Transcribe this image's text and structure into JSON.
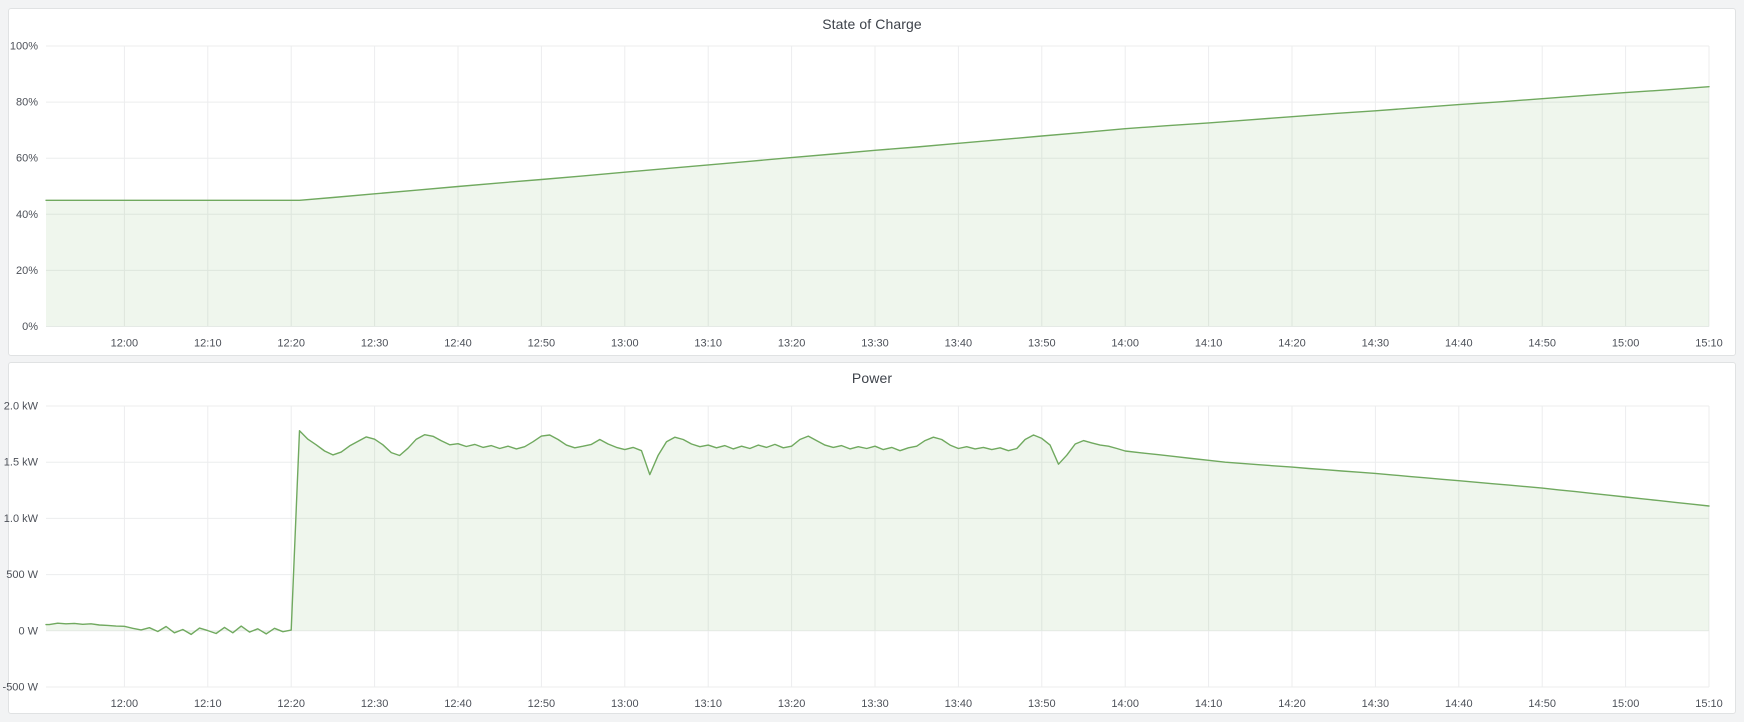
{
  "page": {
    "background": "#f2f3f4",
    "panel_background": "#ffffff",
    "panel_border": "#e0e2e3"
  },
  "panels": [
    {
      "title": "State of Charge"
    },
    {
      "title": "Power"
    }
  ],
  "colors": {
    "series_green": "#70a95f",
    "series_fill": "rgba(112,169,95,0.11)",
    "grid": "#ecedee",
    "tick_text": "#4d5159",
    "title_text": "#3d424a"
  },
  "chart_data": [
    {
      "type": "area",
      "title": "State of Charge",
      "unit": "%",
      "xlim": [
        -9.4,
        190
      ],
      "ylim": [
        0,
        100
      ],
      "grid": true,
      "legend": "hidden",
      "fill_baseline": 0,
      "x_tick_t": [
        0,
        10,
        20,
        30,
        40,
        50,
        60,
        70,
        80,
        90,
        100,
        110,
        120,
        130,
        140,
        150,
        160,
        170,
        180,
        190
      ],
      "x_tick_labels": [
        "12:00",
        "12:10",
        "12:20",
        "12:30",
        "12:40",
        "12:50",
        "13:00",
        "13:10",
        "13:20",
        "13:30",
        "13:40",
        "13:50",
        "14:00",
        "14:10",
        "14:20",
        "14:30",
        "14:40",
        "14:50",
        "15:00",
        "15:10"
      ],
      "y_tick_v": [
        0,
        20,
        40,
        60,
        80,
        100
      ],
      "y_tick_labels": [
        "0%",
        "20%",
        "40%",
        "60%",
        "80%",
        "100%"
      ],
      "series": [
        {
          "name": "State of Charge",
          "points": [
            [
              -9.4,
              45
            ],
            [
              0,
              45
            ],
            [
              5,
              45
            ],
            [
              10,
              45
            ],
            [
              15,
              45
            ],
            [
              20,
              45
            ],
            [
              21,
              45
            ],
            [
              25,
              46
            ],
            [
              30,
              47.3
            ],
            [
              35,
              48.6
            ],
            [
              40,
              49.9
            ],
            [
              45,
              51.2
            ],
            [
              50,
              52.4
            ],
            [
              55,
              53.7
            ],
            [
              60,
              55
            ],
            [
              65,
              56.3
            ],
            [
              70,
              57.6
            ],
            [
              75,
              58.9
            ],
            [
              80,
              60.2
            ],
            [
              85,
              61.5
            ],
            [
              90,
              62.8
            ],
            [
              95,
              64
            ],
            [
              100,
              65.3
            ],
            [
              105,
              66.6
            ],
            [
              110,
              67.9
            ],
            [
              115,
              69.2
            ],
            [
              120,
              70.5
            ],
            [
              125,
              71.6
            ],
            [
              130,
              72.6
            ],
            [
              135,
              73.7
            ],
            [
              140,
              74.8
            ],
            [
              145,
              75.9
            ],
            [
              150,
              76.9
            ],
            [
              155,
              78
            ],
            [
              160,
              79.1
            ],
            [
              165,
              80.1
            ],
            [
              170,
              81.2
            ],
            [
              175,
              82.3
            ],
            [
              180,
              83.4
            ],
            [
              185,
              84.4
            ],
            [
              190,
              85.5
            ]
          ]
        }
      ]
    },
    {
      "type": "area",
      "title": "Power",
      "unit": "W",
      "xlim": [
        -9.4,
        190
      ],
      "ylim": [
        -500,
        2000
      ],
      "grid": true,
      "legend": "hidden",
      "fill_baseline": 0,
      "x_tick_t": [
        0,
        10,
        20,
        30,
        40,
        50,
        60,
        70,
        80,
        90,
        100,
        110,
        120,
        130,
        140,
        150,
        160,
        170,
        180,
        190
      ],
      "x_tick_labels": [
        "12:00",
        "12:10",
        "12:20",
        "12:30",
        "12:40",
        "12:50",
        "13:00",
        "13:10",
        "13:20",
        "13:30",
        "13:40",
        "13:50",
        "14:00",
        "14:10",
        "14:20",
        "14:30",
        "14:40",
        "14:50",
        "15:00",
        "15:10"
      ],
      "y_tick_v": [
        -500,
        0,
        500,
        1000,
        1500,
        2000
      ],
      "y_tick_labels": [
        "-500 W",
        "0 W",
        "500 W",
        "1.0 kW",
        "1.5 kW",
        "2.0 kW"
      ],
      "series": [
        {
          "name": "Power",
          "points": [
            [
              -9.4,
              55
            ],
            [
              -9,
              55
            ],
            [
              -8,
              68
            ],
            [
              -7,
              62
            ],
            [
              -6,
              66
            ],
            [
              -5,
              58
            ],
            [
              -4,
              62
            ],
            [
              -3,
              52
            ],
            [
              -2,
              48
            ],
            [
              -1,
              42
            ],
            [
              0,
              40
            ],
            [
              1,
              22
            ],
            [
              2,
              8
            ],
            [
              3,
              28
            ],
            [
              4,
              -6
            ],
            [
              5,
              38
            ],
            [
              6,
              -18
            ],
            [
              7,
              12
            ],
            [
              8,
              -32
            ],
            [
              9,
              24
            ],
            [
              10,
              2
            ],
            [
              11,
              -24
            ],
            [
              12,
              30
            ],
            [
              13,
              -18
            ],
            [
              14,
              42
            ],
            [
              15,
              -12
            ],
            [
              16,
              18
            ],
            [
              17,
              -28
            ],
            [
              18,
              22
            ],
            [
              19,
              -8
            ],
            [
              20,
              6
            ],
            [
              21,
              1780
            ],
            [
              22,
              1705
            ],
            [
              23,
              1655
            ],
            [
              24,
              1600
            ],
            [
              25,
              1565
            ],
            [
              26,
              1590
            ],
            [
              27,
              1645
            ],
            [
              28,
              1685
            ],
            [
              29,
              1725
            ],
            [
              30,
              1705
            ],
            [
              31,
              1655
            ],
            [
              32,
              1585
            ],
            [
              33,
              1560
            ],
            [
              34,
              1625
            ],
            [
              35,
              1705
            ],
            [
              36,
              1745
            ],
            [
              37,
              1730
            ],
            [
              38,
              1690
            ],
            [
              39,
              1655
            ],
            [
              40,
              1665
            ],
            [
              41,
              1640
            ],
            [
              42,
              1658
            ],
            [
              43,
              1632
            ],
            [
              44,
              1648
            ],
            [
              45,
              1622
            ],
            [
              46,
              1642
            ],
            [
              47,
              1618
            ],
            [
              48,
              1638
            ],
            [
              49,
              1682
            ],
            [
              50,
              1732
            ],
            [
              51,
              1742
            ],
            [
              52,
              1702
            ],
            [
              53,
              1652
            ],
            [
              54,
              1628
            ],
            [
              55,
              1642
            ],
            [
              56,
              1658
            ],
            [
              57,
              1702
            ],
            [
              58,
              1662
            ],
            [
              59,
              1632
            ],
            [
              60,
              1612
            ],
            [
              61,
              1632
            ],
            [
              62,
              1602
            ],
            [
              63,
              1390
            ],
            [
              64,
              1562
            ],
            [
              65,
              1682
            ],
            [
              66,
              1722
            ],
            [
              67,
              1702
            ],
            [
              68,
              1662
            ],
            [
              69,
              1638
            ],
            [
              70,
              1652
            ],
            [
              71,
              1628
            ],
            [
              72,
              1648
            ],
            [
              73,
              1618
            ],
            [
              74,
              1642
            ],
            [
              75,
              1622
            ],
            [
              76,
              1652
            ],
            [
              77,
              1632
            ],
            [
              78,
              1658
            ],
            [
              79,
              1628
            ],
            [
              80,
              1642
            ],
            [
              81,
              1702
            ],
            [
              82,
              1732
            ],
            [
              83,
              1692
            ],
            [
              84,
              1652
            ],
            [
              85,
              1632
            ],
            [
              86,
              1648
            ],
            [
              87,
              1618
            ],
            [
              88,
              1638
            ],
            [
              89,
              1622
            ],
            [
              90,
              1642
            ],
            [
              91,
              1612
            ],
            [
              92,
              1632
            ],
            [
              93,
              1602
            ],
            [
              94,
              1628
            ],
            [
              95,
              1642
            ],
            [
              96,
              1692
            ],
            [
              97,
              1722
            ],
            [
              98,
              1702
            ],
            [
              99,
              1652
            ],
            [
              100,
              1622
            ],
            [
              101,
              1638
            ],
            [
              102,
              1618
            ],
            [
              103,
              1632
            ],
            [
              104,
              1612
            ],
            [
              105,
              1628
            ],
            [
              106,
              1602
            ],
            [
              107,
              1622
            ],
            [
              108,
              1702
            ],
            [
              109,
              1742
            ],
            [
              110,
              1712
            ],
            [
              111,
              1652
            ],
            [
              112,
              1482
            ],
            [
              113,
              1562
            ],
            [
              114,
              1662
            ],
            [
              115,
              1692
            ],
            [
              116,
              1672
            ],
            [
              117,
              1652
            ],
            [
              118,
              1642
            ],
            [
              119,
              1622
            ],
            [
              120,
              1600
            ],
            [
              122,
              1583
            ],
            [
              124,
              1567
            ],
            [
              126,
              1550
            ],
            [
              128,
              1533
            ],
            [
              130,
              1517
            ],
            [
              132,
              1500
            ],
            [
              134,
              1489
            ],
            [
              136,
              1478
            ],
            [
              138,
              1467
            ],
            [
              140,
              1456
            ],
            [
              142,
              1444
            ],
            [
              144,
              1433
            ],
            [
              146,
              1422
            ],
            [
              148,
              1411
            ],
            [
              150,
              1400
            ],
            [
              152,
              1387
            ],
            [
              154,
              1374
            ],
            [
              156,
              1361
            ],
            [
              158,
              1348
            ],
            [
              160,
              1335
            ],
            [
              162,
              1322
            ],
            [
              164,
              1309
            ],
            [
              166,
              1296
            ],
            [
              168,
              1283
            ],
            [
              170,
              1270
            ],
            [
              172,
              1254
            ],
            [
              174,
              1238
            ],
            [
              176,
              1222
            ],
            [
              178,
              1206
            ],
            [
              180,
              1190
            ],
            [
              182,
              1174
            ],
            [
              184,
              1158
            ],
            [
              186,
              1142
            ],
            [
              188,
              1126
            ],
            [
              190,
              1110
            ]
          ]
        }
      ]
    }
  ]
}
